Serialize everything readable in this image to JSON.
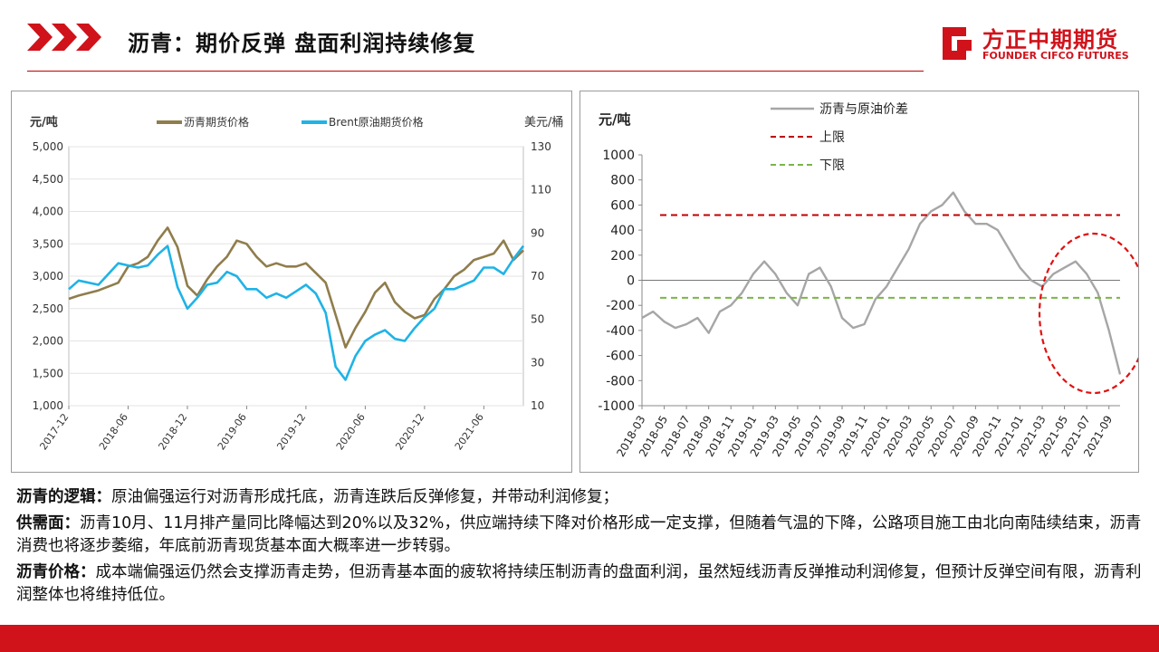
{
  "header": {
    "title": "沥青：期价反弹 盘面利润持续修复",
    "logo_cn": "方正中期期货",
    "logo_en": "FOUNDER CIFCO FUTURES",
    "brand_color": "#d0121b"
  },
  "chart_data": [
    {
      "type": "line",
      "ylabel_left": "元/吨",
      "ylabel_right": "美元/桶",
      "ylim_left": [
        1000,
        5000
      ],
      "ylim_right": [
        10,
        130
      ],
      "yticks_left": [
        "5,000",
        "4,500",
        "4,000",
        "3,500",
        "3,000",
        "2,500",
        "2,000",
        "1,500",
        "1,000"
      ],
      "yticks_right": [
        "130",
        "110",
        "90",
        "70",
        "50",
        "30",
        "10"
      ],
      "x_ticks": [
        "2017-12",
        "2018-06",
        "2018-12",
        "2019-06",
        "2019-12",
        "2020-06",
        "2020-12",
        "2021-06"
      ],
      "legend": "top",
      "grid": true,
      "series": [
        {
          "name": "沥青期货价格",
          "axis": "left",
          "color": "#8f7d4c",
          "points": [
            [
              "2017-12",
              2650
            ],
            [
              "2018-01",
              2700
            ],
            [
              "2018-03",
              2780
            ],
            [
              "2018-05",
              2900
            ],
            [
              "2018-06",
              3150
            ],
            [
              "2018-07",
              3200
            ],
            [
              "2018-08",
              3300
            ],
            [
              "2018-09",
              3550
            ],
            [
              "2018-10",
              3750
            ],
            [
              "2018-11",
              3450
            ],
            [
              "2018-12",
              2850
            ],
            [
              "2019-01",
              2700
            ],
            [
              "2019-02",
              2950
            ],
            [
              "2019-03",
              3150
            ],
            [
              "2019-04",
              3300
            ],
            [
              "2019-05",
              3550
            ],
            [
              "2019-06",
              3500
            ],
            [
              "2019-07",
              3300
            ],
            [
              "2019-08",
              3150
            ],
            [
              "2019-09",
              3200
            ],
            [
              "2019-10",
              3150
            ],
            [
              "2019-11",
              3150
            ],
            [
              "2019-12",
              3200
            ],
            [
              "2020-01",
              3050
            ],
            [
              "2020-02",
              2900
            ],
            [
              "2020-03",
              2400
            ],
            [
              "2020-04",
              1900
            ],
            [
              "2020-05",
              2200
            ],
            [
              "2020-06",
              2450
            ],
            [
              "2020-07",
              2750
            ],
            [
              "2020-08",
              2900
            ],
            [
              "2020-09",
              2600
            ],
            [
              "2020-10",
              2450
            ],
            [
              "2020-11",
              2350
            ],
            [
              "2020-12",
              2400
            ],
            [
              "2021-01",
              2650
            ],
            [
              "2021-02",
              2800
            ],
            [
              "2021-03",
              3000
            ],
            [
              "2021-04",
              3100
            ],
            [
              "2021-05",
              3250
            ],
            [
              "2021-06",
              3300
            ],
            [
              "2021-07",
              3350
            ],
            [
              "2021-08",
              3550
            ],
            [
              "2021-09",
              3250
            ],
            [
              "2021-10",
              3400
            ]
          ]
        },
        {
          "name": "Brent原油期货价格",
          "axis": "right",
          "color": "#1fb3e6",
          "points": [
            [
              "2017-12",
              64
            ],
            [
              "2018-01",
              68
            ],
            [
              "2018-03",
              66
            ],
            [
              "2018-05",
              76
            ],
            [
              "2018-06",
              75
            ],
            [
              "2018-07",
              74
            ],
            [
              "2018-08",
              75
            ],
            [
              "2018-09",
              80
            ],
            [
              "2018-10",
              84
            ],
            [
              "2018-11",
              65
            ],
            [
              "2018-12",
              55
            ],
            [
              "2019-01",
              60
            ],
            [
              "2019-02",
              66
            ],
            [
              "2019-03",
              67
            ],
            [
              "2019-04",
              72
            ],
            [
              "2019-05",
              70
            ],
            [
              "2019-06",
              64
            ],
            [
              "2019-07",
              64
            ],
            [
              "2019-08",
              60
            ],
            [
              "2019-09",
              62
            ],
            [
              "2019-10",
              60
            ],
            [
              "2019-11",
              63
            ],
            [
              "2019-12",
              66
            ],
            [
              "2020-01",
              62
            ],
            [
              "2020-02",
              53
            ],
            [
              "2020-03",
              28
            ],
            [
              "2020-04",
              22
            ],
            [
              "2020-05",
              33
            ],
            [
              "2020-06",
              40
            ],
            [
              "2020-07",
              43
            ],
            [
              "2020-08",
              45
            ],
            [
              "2020-09",
              41
            ],
            [
              "2020-10",
              40
            ],
            [
              "2020-11",
              46
            ],
            [
              "2020-12",
              51
            ],
            [
              "2021-01",
              55
            ],
            [
              "2021-02",
              64
            ],
            [
              "2021-03",
              64
            ],
            [
              "2021-04",
              66
            ],
            [
              "2021-05",
              68
            ],
            [
              "2021-06",
              74
            ],
            [
              "2021-07",
              74
            ],
            [
              "2021-08",
              71
            ],
            [
              "2021-09",
              78
            ],
            [
              "2021-10",
              84
            ]
          ]
        }
      ]
    },
    {
      "type": "line",
      "ylabel": "元/吨",
      "ylim": [
        -1000,
        1000
      ],
      "yticks": [
        "1000",
        "800",
        "600",
        "400",
        "200",
        "0",
        "-200",
        "-400",
        "-600",
        "-800",
        "-1000"
      ],
      "x_ticks": [
        "2018-03",
        "2018-05",
        "2018-07",
        "2018-09",
        "2018-11",
        "2019-01",
        "2019-03",
        "2019-05",
        "2019-07",
        "2019-09",
        "2019-11",
        "2020-01",
        "2020-03",
        "2020-05",
        "2020-07",
        "2020-09",
        "2020-11",
        "2021-01",
        "2021-03",
        "2021-05",
        "2021-07",
        "2021-09"
      ],
      "legend": "top-left",
      "zero_line": true,
      "highlight": "red dashed ellipse around 2021-03 to 2021-09",
      "series": [
        {
          "name": "沥青与原油价差",
          "color": "#a6a6a6",
          "points": [
            [
              "2018-03",
              -300
            ],
            [
              "2018-04",
              -250
            ],
            [
              "2018-05",
              -330
            ],
            [
              "2018-06",
              -380
            ],
            [
              "2018-07",
              -350
            ],
            [
              "2018-08",
              -300
            ],
            [
              "2018-09",
              -420
            ],
            [
              "2018-10",
              -250
            ],
            [
              "2018-11",
              -200
            ],
            [
              "2018-12",
              -100
            ],
            [
              "2019-01",
              50
            ],
            [
              "2019-02",
              150
            ],
            [
              "2019-03",
              50
            ],
            [
              "2019-04",
              -100
            ],
            [
              "2019-05",
              -200
            ],
            [
              "2019-06",
              50
            ],
            [
              "2019-07",
              100
            ],
            [
              "2019-08",
              -50
            ],
            [
              "2019-09",
              -300
            ],
            [
              "2019-10",
              -380
            ],
            [
              "2019-11",
              -350
            ],
            [
              "2019-12",
              -150
            ],
            [
              "2020-01",
              -50
            ],
            [
              "2020-02",
              100
            ],
            [
              "2020-03",
              250
            ],
            [
              "2020-04",
              450
            ],
            [
              "2020-05",
              550
            ],
            [
              "2020-06",
              600
            ],
            [
              "2020-07",
              700
            ],
            [
              "2020-08",
              550
            ],
            [
              "2020-09",
              450
            ],
            [
              "2020-10",
              450
            ],
            [
              "2020-11",
              400
            ],
            [
              "2020-12",
              250
            ],
            [
              "2021-01",
              100
            ],
            [
              "2021-02",
              0
            ],
            [
              "2021-03",
              -50
            ],
            [
              "2021-04",
              50
            ],
            [
              "2021-05",
              100
            ],
            [
              "2021-06",
              150
            ],
            [
              "2021-07",
              50
            ],
            [
              "2021-08",
              -100
            ],
            [
              "2021-09",
              -400
            ],
            [
              "2021-10",
              -750
            ]
          ]
        },
        {
          "name": "上限",
          "color": "#c00000",
          "value": 520
        },
        {
          "name": "下限",
          "color": "#7ab648",
          "value": -140
        }
      ]
    }
  ],
  "text": {
    "logic_label": "沥青的逻辑：",
    "logic_body": "原油偏强运行对沥青形成托底，沥青连跌后反弹修复，并带动利润修复；",
    "supply_label": "供需面：",
    "supply_body": "沥青10月、11月排产量同比降幅达到20%以及32%，供应端持续下降对价格形成一定支撑，但随着气温的下降，公路项目施工由北向南陆续结束，沥青消费也将逐步萎缩，年底前沥青现货基本面大概率进一步转弱。",
    "price_label": "沥青价格：",
    "price_body": "成本端偏强运仍然会支撑沥青走势，但沥青基本面的疲软将持续压制沥青的盘面利润，虽然短线沥青反弹推动利润修复，但预计反弹空间有限，沥青利润整体也将维持低位。"
  }
}
